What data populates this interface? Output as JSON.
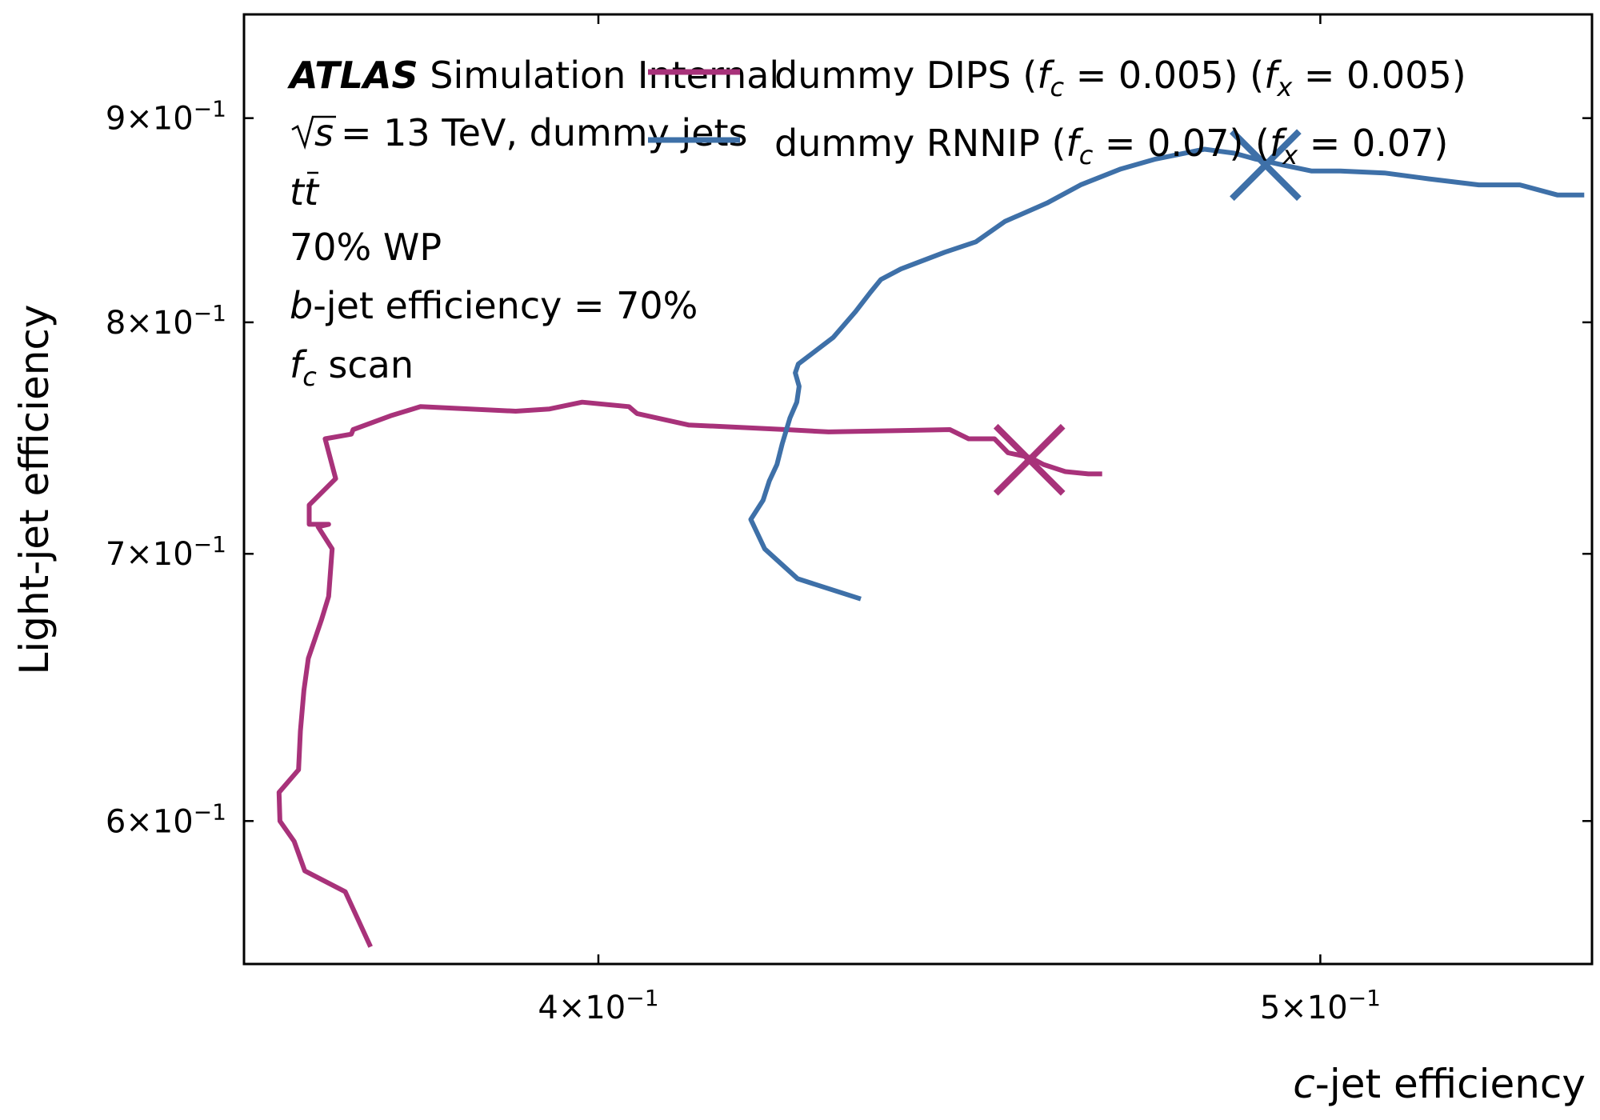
{
  "chart_data": {
    "type": "line",
    "x_scale": "log",
    "y_scale": "log",
    "xlim": [
      0.3585,
      0.5438
    ],
    "ylim": [
      0.5525,
      0.9555
    ],
    "xlabel_var": "c",
    "xlabel_rest": "-jet efficiency",
    "ylabel": "Light-jet efficiency",
    "x_ticks": [
      {
        "value": 0.4,
        "mant": "4",
        "exp": "−1"
      },
      {
        "value": 0.5,
        "mant": "5",
        "exp": "−1"
      }
    ],
    "y_ticks": [
      {
        "value": 0.6,
        "mant": "6",
        "exp": "−1"
      },
      {
        "value": 0.7,
        "mant": "7",
        "exp": "−1"
      },
      {
        "value": 0.8,
        "mant": "8",
        "exp": "−1"
      },
      {
        "value": 0.9,
        "mant": "9",
        "exp": "−1"
      }
    ],
    "info": {
      "atlas": "ATLAS",
      "atlas_rest": " Simulation Internal",
      "energy": "= 13 TeV, dummy jets",
      "sample_t": "t",
      "wp": "70% WP",
      "beff_var": "b",
      "beff_rest": "-jet efficiency = 70%",
      "scan_var": "f",
      "scan_sub": "c",
      "scan_rest": " scan"
    },
    "series": [
      {
        "name": "dummy DIPS (f_c = 0.005) (f_x = 0.005)",
        "legend_prefix": "dummy DIPS (",
        "legend_a": "f",
        "legend_a_sub": "c",
        "legend_a_val": " = 0.005) (",
        "legend_b": "f",
        "legend_b_sub": "x",
        "legend_b_val": " = 0.005)",
        "color": "#a8327a",
        "x": [
          0.3728,
          0.3699,
          0.3653,
          0.3641,
          0.3625,
          0.3624,
          0.3646,
          0.3648,
          0.3652,
          0.3657,
          0.3672,
          0.368,
          0.3684,
          0.3668,
          0.368,
          0.3658,
          0.3658,
          0.3688,
          0.3676,
          0.3706,
          0.3708,
          0.3751,
          0.3786,
          0.3899,
          0.394,
          0.398,
          0.4038,
          0.4048,
          0.4113,
          0.4239,
          0.4295,
          0.4459,
          0.4485,
          0.4521,
          0.454,
          0.4571,
          0.459,
          0.4621,
          0.4654,
          0.4674
        ],
        "y": [
          0.558,
          0.576,
          0.583,
          0.593,
          0.6,
          0.61,
          0.618,
          0.632,
          0.647,
          0.659,
          0.674,
          0.683,
          0.702,
          0.711,
          0.712,
          0.712,
          0.72,
          0.731,
          0.748,
          0.75,
          0.752,
          0.758,
          0.762,
          0.76,
          0.761,
          0.764,
          0.762,
          0.759,
          0.754,
          0.752,
          0.751,
          0.752,
          0.748,
          0.748,
          0.742,
          0.74,
          0.737,
          0.734,
          0.733,
          0.733
        ]
      },
      {
        "name": "dummy RNNIP (f_c = 0.07) (f_x = 0.07)",
        "legend_prefix": "dummy RNNIP (",
        "legend_a": "f",
        "legend_a_sub": "c",
        "legend_a_val": " = 0.07) (",
        "legend_b": "f",
        "legend_b_sub": "x",
        "legend_b_val": " = 0.07)",
        "color": "#3e70a8",
        "x": [
          0.4338,
          0.4254,
          0.4211,
          0.4193,
          0.4209,
          0.4217,
          0.4227,
          0.4234,
          0.4244,
          0.4253,
          0.4256,
          0.4251,
          0.4255,
          0.4301,
          0.4331,
          0.4351,
          0.4365,
          0.4392,
          0.4452,
          0.4495,
          0.4536,
          0.4595,
          0.4643,
          0.4701,
          0.4752,
          0.4824,
          0.4868,
          0.4901,
          0.4942,
          0.4986,
          0.5031,
          0.51,
          0.5171,
          0.5251,
          0.5318,
          0.538,
          0.5425
        ],
        "y": [
          0.682,
          0.69,
          0.702,
          0.714,
          0.722,
          0.73,
          0.737,
          0.746,
          0.757,
          0.764,
          0.771,
          0.777,
          0.781,
          0.793,
          0.805,
          0.814,
          0.82,
          0.825,
          0.833,
          0.838,
          0.848,
          0.857,
          0.866,
          0.874,
          0.879,
          0.884,
          0.882,
          0.879,
          0.876,
          0.873,
          0.873,
          0.872,
          0.869,
          0.866,
          0.866,
          0.861,
          0.861
        ]
      }
    ],
    "markers": [
      {
        "series": 0,
        "x": 0.457,
        "y": 0.739
      },
      {
        "series": 1,
        "x": 0.4916,
        "y": 0.876
      }
    ],
    "grid": false,
    "legend_position": "top-right"
  }
}
